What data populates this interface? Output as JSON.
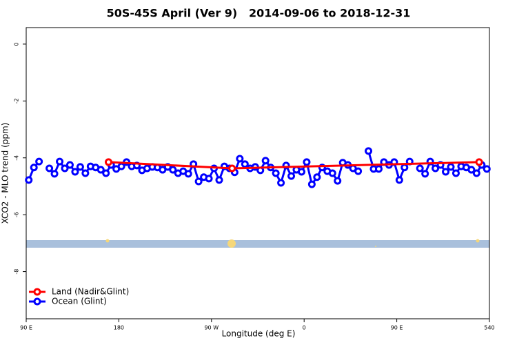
{
  "chart_data": {
    "type": "line",
    "title": "50S-45S April (Ver 9)   2014-09-06 to 2018-12-31",
    "x_label": "Longitude (deg E)",
    "y_label": "XCO2 - MLO trend (ppm)",
    "xlim": [
      90,
      540
    ],
    "ylim": [
      -9.66,
      0.58
    ],
    "xticks": [
      {
        "value": 90,
        "label": "90 E"
      },
      180,
      {
        "value": 270,
        "label": "90 W"
      },
      {
        "value": 360,
        "label": "0"
      },
      {
        "value": 450,
        "label": "90 E"
      },
      540
    ],
    "yticks": [
      0,
      -2,
      -4,
      -6,
      -8
    ],
    "legend": "bottom-left",
    "series": [
      {
        "name": "Land (Nadir&Glint)",
        "color": "#ff0000",
        "x": [
          170,
          290,
          530
        ],
        "values": [
          -4.15,
          -4.37,
          -4.15
        ]
      },
      {
        "name": "Ocean (Glint)",
        "color": "#0000ff",
        "x": [
          92.5,
          97.5,
          102.5,
          107.5,
          112.5,
          117.5,
          122.5,
          127.5,
          132.5,
          137.5,
          142.5,
          147.5,
          152.5,
          157.5,
          162.5,
          167.5,
          172.5,
          177.5,
          182.5,
          187.5,
          192.5,
          197.5,
          202.5,
          207.5,
          212.5,
          217.5,
          222.5,
          227.5,
          232.5,
          237.5,
          242.5,
          247.5,
          252.5,
          257.5,
          262.5,
          267.5,
          272.5,
          277.5,
          282.5,
          287.5,
          292.5,
          297.5,
          302.5,
          307.5,
          312.5,
          317.5,
          322.5,
          327.5,
          332.5,
          337.5,
          342.5,
          347.5,
          352.5,
          357.5,
          362.5,
          367.5,
          372.5,
          377.5,
          382.5,
          387.5,
          392.5,
          397.5,
          402.5,
          407.5,
          412.5,
          417.5,
          422.5,
          427.5,
          432.5,
          437.5,
          442.5,
          447.5,
          452.5,
          457.5,
          462.5,
          467.5,
          472.5,
          477.5,
          482.5,
          487.5,
          492.5,
          497.5,
          502.5,
          507.5,
          512.5,
          517.5,
          522.5,
          527.5,
          532.5,
          537.5
        ],
        "values": [
          -4.78,
          -4.34,
          -4.13,
          null,
          -4.37,
          -4.56,
          -4.13,
          -4.37,
          -4.25,
          -4.49,
          -4.32,
          -4.54,
          -4.3,
          -4.34,
          -4.42,
          -4.54,
          -4.25,
          -4.39,
          -4.3,
          -4.15,
          -4.3,
          -4.27,
          -4.44,
          -4.37,
          -4.32,
          -4.34,
          -4.42,
          -4.32,
          -4.42,
          -4.54,
          -4.47,
          -4.56,
          -4.22,
          -4.83,
          -4.68,
          -4.73,
          -4.37,
          -4.78,
          -4.3,
          -4.37,
          -4.51,
          -4.03,
          -4.22,
          -4.37,
          -4.32,
          -4.44,
          -4.1,
          -4.34,
          -4.54,
          -4.88,
          -4.27,
          -4.64,
          -4.42,
          -4.49,
          -4.15,
          -4.93,
          -4.68,
          -4.34,
          -4.47,
          -4.54,
          -4.81,
          -4.17,
          -4.25,
          -4.37,
          -4.47,
          null,
          -3.76,
          -4.39,
          -4.39,
          -4.15,
          -4.25,
          -4.15,
          -4.78,
          -4.34,
          -4.13,
          null,
          -4.37,
          -4.56,
          -4.13,
          -4.37,
          -4.25,
          -4.49,
          -4.32,
          -4.54,
          -4.3,
          -4.34,
          -4.42,
          -4.54,
          -4.25,
          -4.39
        ]
      }
    ]
  }
}
